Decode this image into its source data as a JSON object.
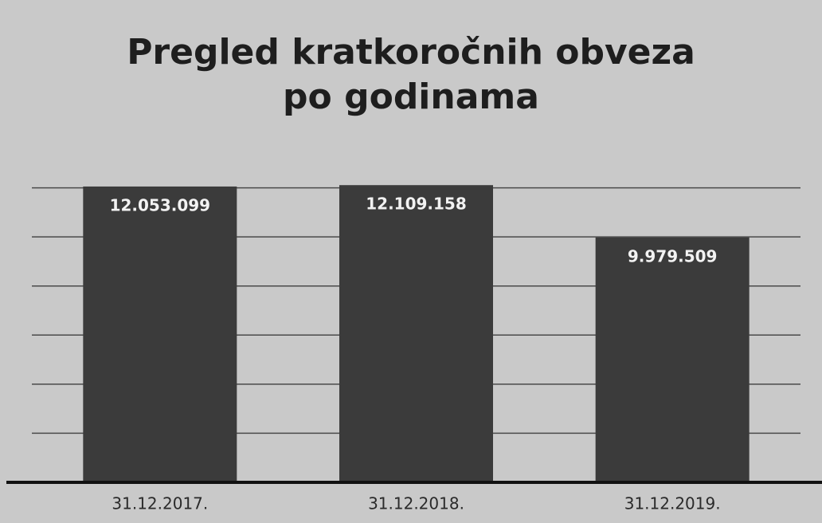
{
  "chart_data": {
    "type": "bar",
    "title": "Pregled kratkoročnih obveza po godinama",
    "categories": [
      "31.12.2017.",
      "31.12.2018.",
      "31.12.2019."
    ],
    "values": [
      12053099,
      12109158,
      9979509
    ],
    "value_labels": [
      "12.053.099",
      "12.109.158",
      "9.979.509"
    ],
    "color": "#3b3b3b",
    "ylim": [
      0,
      14000000
    ],
    "yticks": [
      0,
      2000000,
      4000000,
      6000000,
      8000000,
      10000000,
      12000000
    ],
    "grid": true
  }
}
